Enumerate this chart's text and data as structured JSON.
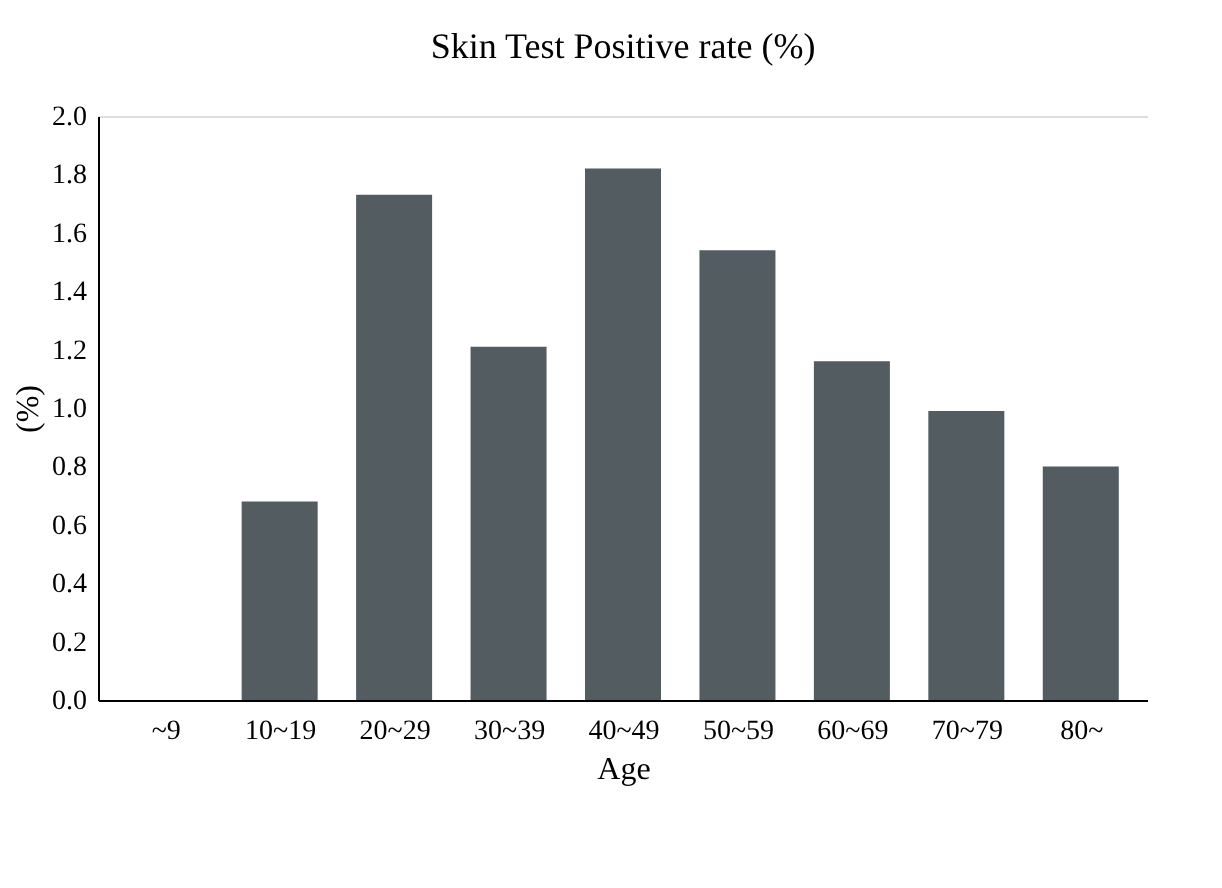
{
  "chart_data": {
    "type": "bar",
    "title": "Skin Test Positive rate (%)",
    "xlabel": "Age",
    "ylabel": "(%)",
    "categories": [
      "~9",
      "10~19",
      "20~29",
      "30~39",
      "40~49",
      "50~59",
      "60~69",
      "70~79",
      "80~"
    ],
    "values": [
      0,
      0.68,
      1.73,
      1.21,
      1.82,
      1.54,
      1.16,
      0.99,
      0.8
    ],
    "color": "#525c61",
    "ylim": [
      0,
      2.0
    ],
    "yticks": [
      {
        "value": 0,
        "label": "0.0"
      },
      {
        "value": 0.2,
        "label": "0.2"
      },
      {
        "value": 0.4,
        "label": "0.4"
      },
      {
        "value": 0.6,
        "label": "0.6"
      },
      {
        "value": 0.8,
        "label": "0.8"
      },
      {
        "value": 1.0,
        "label": "1.0"
      },
      {
        "value": 1.2,
        "label": "1.2"
      },
      {
        "value": 1.4,
        "label": "1.4"
      },
      {
        "value": 1.6,
        "label": "1.6"
      },
      {
        "value": 1.8,
        "label": "1.8"
      },
      {
        "value": 2.0,
        "label": "2.0"
      }
    ],
    "grid": false
  }
}
